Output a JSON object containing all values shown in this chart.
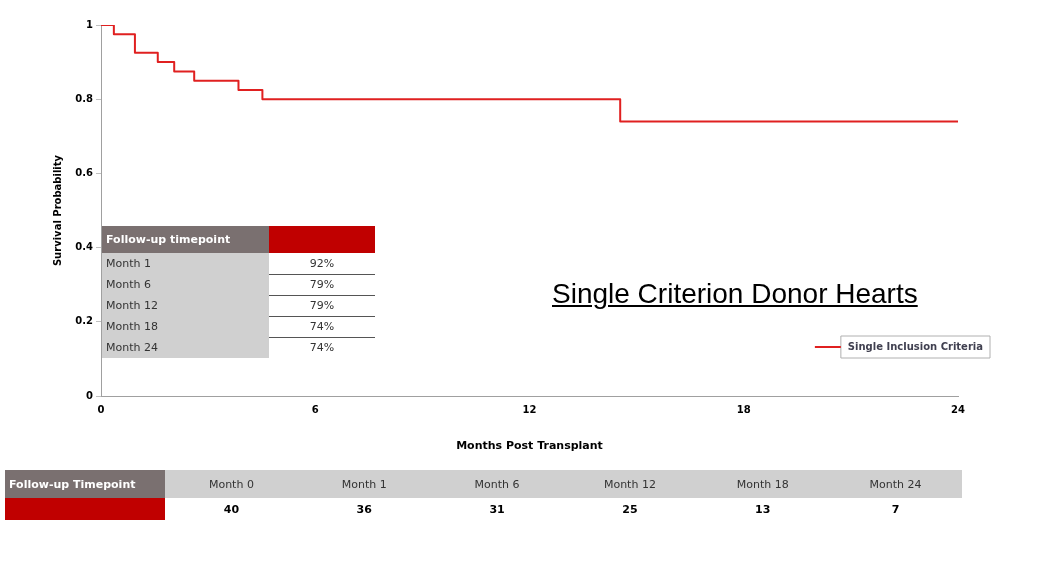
{
  "chart_data": {
    "type": "step",
    "xlabel": "Months Post Transplant",
    "ylabel": "Survival Probability",
    "xlim": [
      0,
      24
    ],
    "xticks": [
      0,
      6,
      12,
      18,
      24
    ],
    "ylim": [
      0,
      1
    ],
    "yticks": [
      0,
      0.2,
      0.4,
      0.6,
      0.8,
      1
    ],
    "grid": false,
    "legend": "bottom right",
    "marker": "none",
    "line_style": "solid",
    "series": [
      {
        "name": "Single Inclusion Criteria",
        "color": "#e02020",
        "x": [
          0,
          0.36,
          0.95,
          1.59,
          2.05,
          2.61,
          3.85,
          4.52,
          14.54,
          24
        ],
        "values": [
          1,
          0.975,
          0.925,
          0.9,
          0.875,
          0.85,
          0.825,
          0.8,
          0.74,
          0.74
        ]
      }
    ],
    "annotations": [
      "Single Criterion Donor Hearts",
      "Follow-up timepoint",
      "Month 1",
      "92%",
      "Month 6",
      "79%",
      "Month 12",
      "79%",
      "Month 18",
      "74%",
      "Month 24",
      "74%",
      "Follow-up Timepoint",
      "Month 0",
      "Month 1",
      "Month 6",
      "Month 12",
      "Month 18",
      "Month 24",
      "40",
      "36",
      "31",
      "25",
      "13",
      "7"
    ]
  }
}
